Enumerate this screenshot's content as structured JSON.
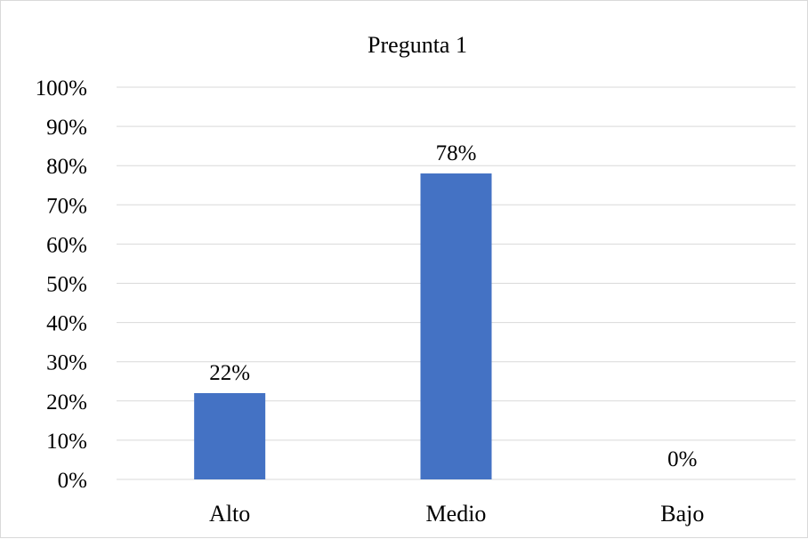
{
  "chart_data": {
    "type": "bar",
    "title": "Pregunta 1",
    "xlabel": "",
    "ylabel": "",
    "categories": [
      "Alto",
      "Medio",
      "Bajo"
    ],
    "values": [
      22,
      78,
      0
    ],
    "data_labels": [
      "22%",
      "78%",
      "0%"
    ],
    "ylim": [
      0,
      100
    ],
    "yticks": [
      "0%",
      "10%",
      "20%",
      "30%",
      "40%",
      "50%",
      "60%",
      "70%",
      "80%",
      "90%",
      "100%"
    ],
    "grid": true,
    "legend": "none",
    "bar_color": "#4472C4",
    "grid_color": "#d9d9d9"
  }
}
